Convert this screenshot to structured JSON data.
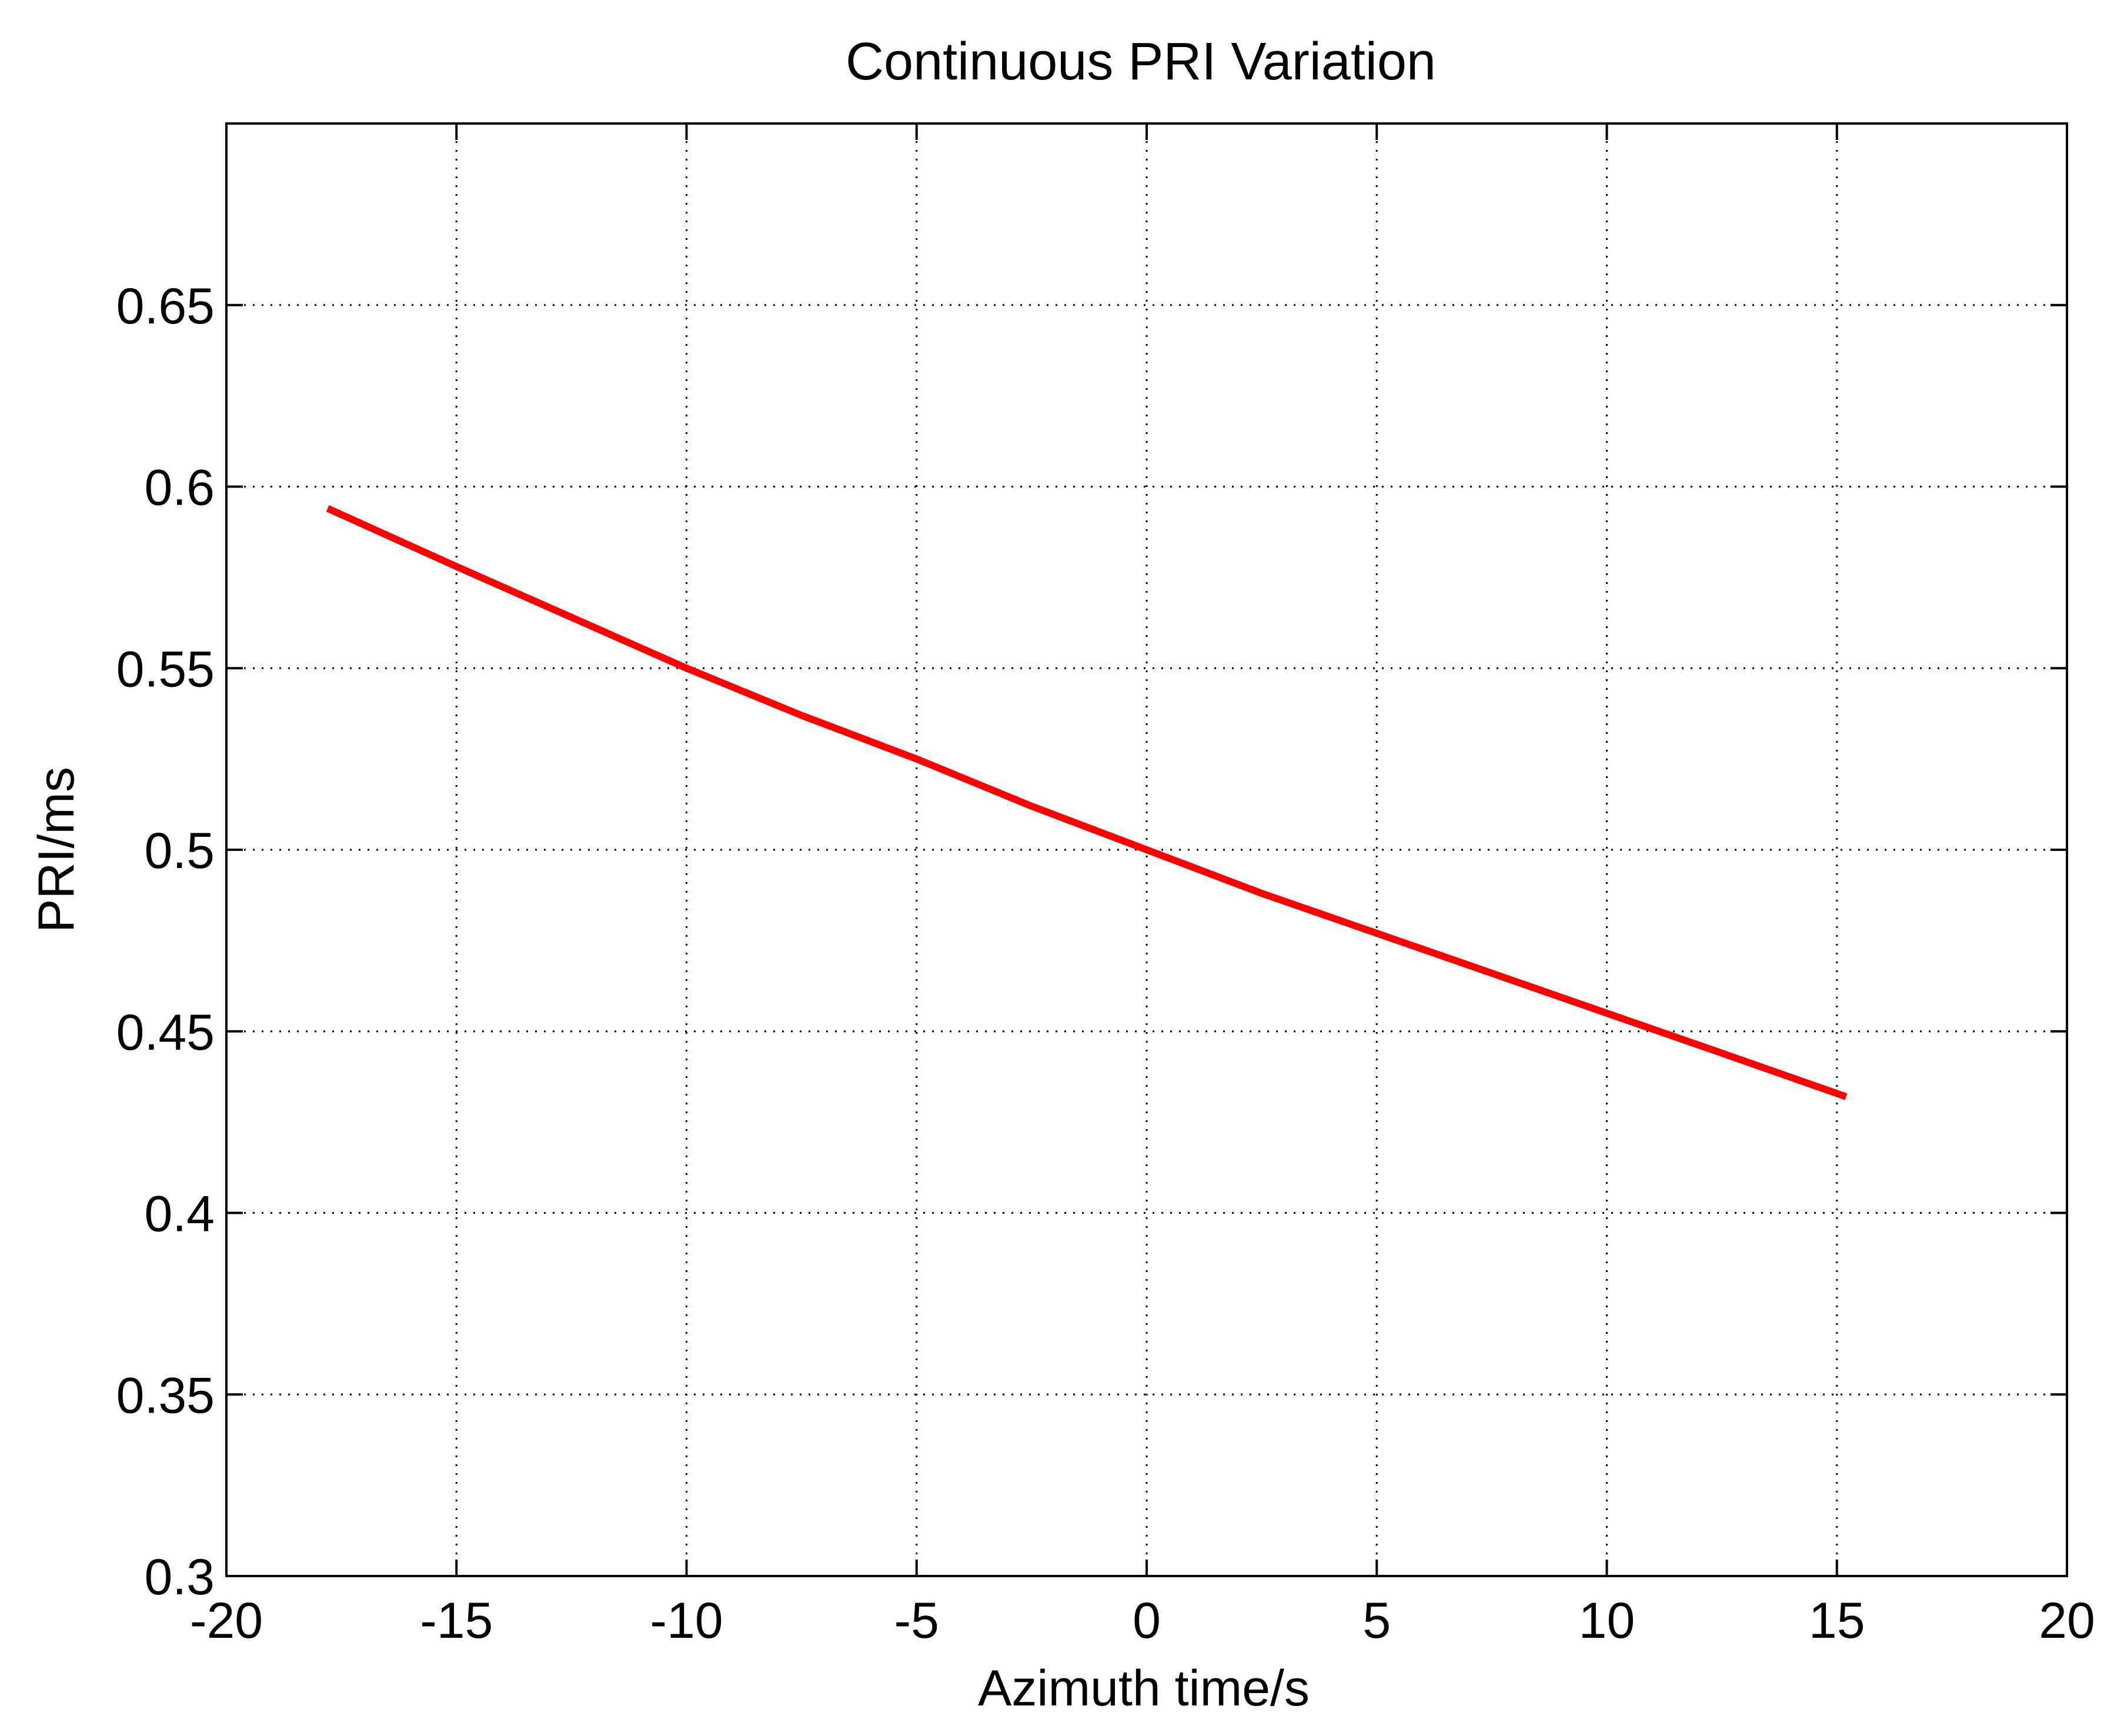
{
  "chart_data": {
    "type": "line",
    "title": "Continuous PRI Variation",
    "xlabel": "Azimuth time/s",
    "ylabel": "PRI/ms",
    "xlim": [
      -20,
      20
    ],
    "ylim": [
      0.3,
      0.7
    ],
    "xticks": [
      -20,
      -15,
      -10,
      -5,
      0,
      5,
      10,
      15,
      20
    ],
    "xtick_labels": [
      "-20",
      "-15",
      "-10",
      "-5",
      "0",
      "5",
      "10",
      "15",
      "20"
    ],
    "yticks": [
      0.3,
      0.35,
      0.4,
      0.45,
      0.5,
      0.55,
      0.6,
      0.65
    ],
    "ytick_labels": [
      "0.3",
      "0.35",
      "0.4",
      "0.45",
      "0.5",
      "0.55",
      "0.6",
      "0.65"
    ],
    "grid": true,
    "series": [
      {
        "name": "PRI",
        "color": "#ff0000",
        "x": [
          -17.8,
          -15,
          -12.5,
          -10,
          -7.5,
          -5,
          -2.5,
          0,
          2.5,
          5,
          7.5,
          10,
          12.5,
          15.2
        ],
        "y": [
          0.594,
          0.578,
          0.564,
          0.55,
          0.537,
          0.525,
          0.512,
          0.5,
          0.488,
          0.477,
          0.466,
          0.455,
          0.444,
          0.432
        ]
      }
    ]
  }
}
